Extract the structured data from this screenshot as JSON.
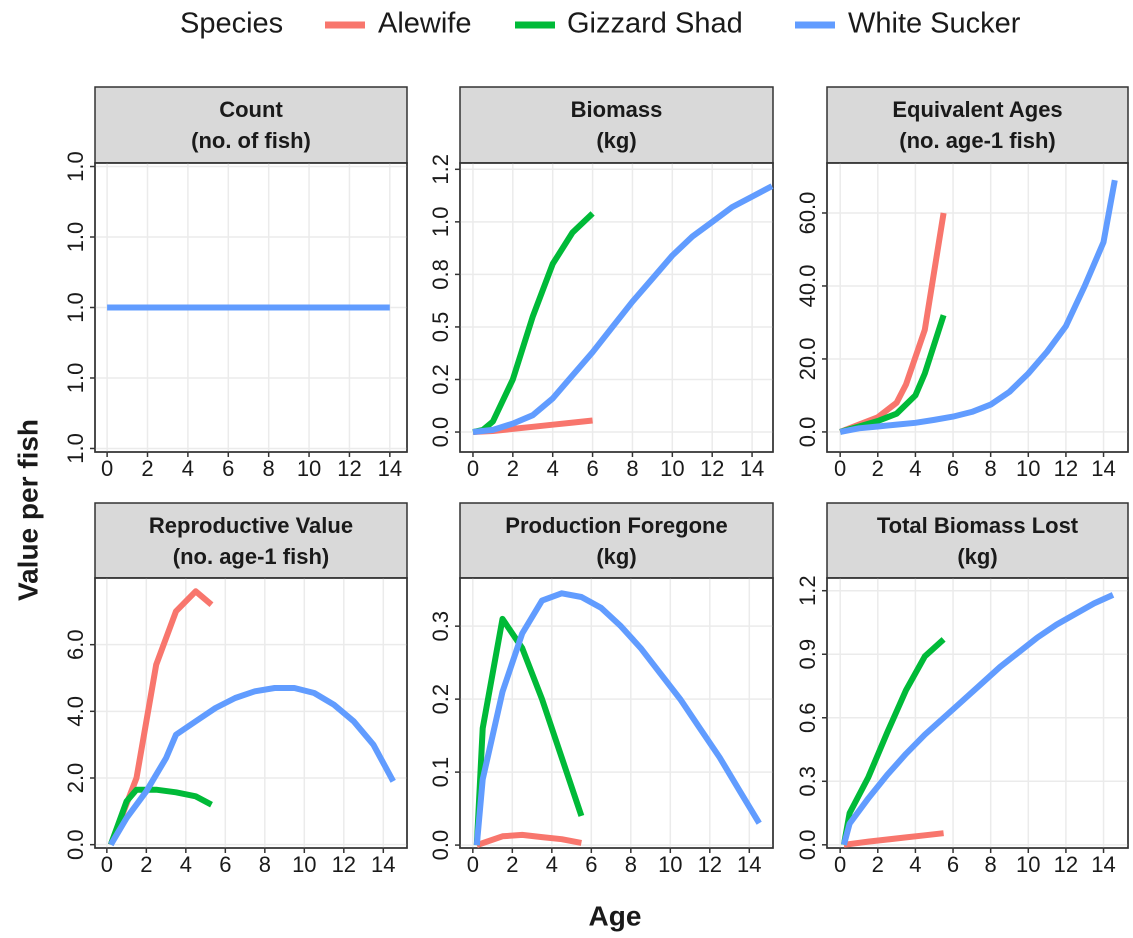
{
  "legend_title": "Species",
  "xlabel": "Age",
  "ylabel": "Value per fish",
  "chart_data": [
    {
      "type": "line",
      "title": "Count",
      "subtitle": "(no. of fish)",
      "grid": true,
      "xlim": [
        -0.6,
        14.85
      ],
      "xticks": [
        0,
        2,
        4,
        6,
        8,
        10,
        12,
        14
      ],
      "ylim": [
        0.959,
        1.041
      ],
      "yticks": [
        {
          "value": 0.96,
          "label": "1.0"
        },
        {
          "value": 0.98,
          "label": "1.0"
        },
        {
          "value": 1.0,
          "label": "1.0"
        },
        {
          "value": 1.02,
          "label": "1.0"
        },
        {
          "value": 1.04,
          "label": "1.0"
        }
      ],
      "series": [
        {
          "name": "White Sucker",
          "color": "#619CFF",
          "x": [
            0,
            14
          ],
          "values": [
            1,
            1
          ]
        }
      ]
    },
    {
      "type": "line",
      "title": "Biomass",
      "subtitle": "(kg)",
      "grid": true,
      "xlim": [
        -0.65,
        15.05
      ],
      "xticks": [
        0,
        2,
        4,
        6,
        8,
        10,
        12,
        14
      ],
      "ylim": [
        -0.095,
        1.28
      ],
      "yticks": [
        {
          "value": 0,
          "label": "0.0"
        },
        {
          "value": 0.25,
          "label": "0.2"
        },
        {
          "value": 0.5,
          "label": "0.5"
        },
        {
          "value": 0.75,
          "label": "0.8"
        },
        {
          "value": 1,
          "label": "1.0"
        },
        {
          "value": 1.25,
          "label": "1.2"
        }
      ],
      "series": [
        {
          "name": "Alewife",
          "color": "#F8766D",
          "x": [
            0,
            1,
            2,
            3,
            4,
            5,
            6
          ],
          "values": [
            0,
            0.005,
            0.015,
            0.025,
            0.035,
            0.045,
            0.055
          ]
        },
        {
          "name": "Gizzard Shad",
          "color": "#00BA38",
          "x": [
            0,
            0.5,
            1,
            2,
            3,
            4,
            5,
            6
          ],
          "values": [
            0,
            0.01,
            0.05,
            0.25,
            0.55,
            0.8,
            0.95,
            1.04
          ]
        },
        {
          "name": "White Sucker",
          "color": "#619CFF",
          "x": [
            0,
            1,
            2,
            3,
            4,
            5,
            6,
            7,
            8,
            9,
            10,
            11,
            12,
            13,
            14,
            15
          ],
          "values": [
            0,
            0.01,
            0.04,
            0.08,
            0.16,
            0.27,
            0.38,
            0.5,
            0.62,
            0.73,
            0.84,
            0.93,
            1.0,
            1.07,
            1.12,
            1.17
          ]
        }
      ]
    },
    {
      "type": "line",
      "title": "Equivalent Ages",
      "subtitle": "(no. age-1 fish)",
      "grid": true,
      "xlim": [
        -0.7,
        15.3
      ],
      "xticks": [
        0,
        2,
        4,
        6,
        8,
        10,
        12,
        14
      ],
      "ylim": [
        -5.5,
        73.7
      ],
      "yticks": [
        {
          "value": 0,
          "label": "0.0"
        },
        {
          "value": 20,
          "label": "20.0"
        },
        {
          "value": 40,
          "label": "40.0"
        },
        {
          "value": 60,
          "label": "60.0"
        }
      ],
      "series": [
        {
          "name": "Alewife",
          "color": "#F8766D",
          "x": [
            0,
            1,
            2,
            3,
            3.5,
            4.5,
            5.5
          ],
          "values": [
            0,
            2,
            4,
            8,
            13,
            28,
            60
          ]
        },
        {
          "name": "Gizzard Shad",
          "color": "#00BA38",
          "x": [
            0,
            1,
            2,
            3,
            4,
            4.5,
            5.5
          ],
          "values": [
            0,
            1.5,
            3,
            5,
            10,
            16,
            32
          ]
        },
        {
          "name": "White Sucker",
          "color": "#619CFF",
          "x": [
            0,
            1,
            2,
            3,
            4,
            5,
            6,
            7,
            8,
            9,
            10,
            11,
            12,
            13,
            14,
            14.6
          ],
          "values": [
            0,
            1,
            1.5,
            2,
            2.5,
            3.3,
            4.2,
            5.5,
            7.5,
            11,
            16,
            22,
            29,
            40,
            52,
            69
          ]
        }
      ]
    },
    {
      "type": "line",
      "title": "Reproductive Value",
      "subtitle": "(no. age-1 fish)",
      "grid": true,
      "xlim": [
        -0.6,
        15.2
      ],
      "xticks": [
        0,
        2,
        4,
        6,
        8,
        10,
        12,
        14
      ],
      "ylim": [
        -0.1,
        8.0
      ],
      "yticks": [
        {
          "value": 0,
          "label": "0.0"
        },
        {
          "value": 2,
          "label": "2.0"
        },
        {
          "value": 4,
          "label": "4.0"
        },
        {
          "value": 6,
          "label": "6.0"
        }
      ],
      "series": [
        {
          "name": "Alewife",
          "color": "#F8766D",
          "x": [
            0.2,
            1.5,
            2.5,
            3.5,
            4.5,
            5.3
          ],
          "values": [
            0,
            2,
            5.4,
            7.0,
            7.6,
            7.2
          ]
        },
        {
          "name": "Gizzard Shad",
          "color": "#00BA38",
          "x": [
            0.2,
            1,
            1.5,
            2.5,
            3.5,
            4.5,
            5.3
          ],
          "values": [
            0,
            1.3,
            1.65,
            1.65,
            1.57,
            1.45,
            1.2
          ]
        },
        {
          "name": "White Sucker",
          "color": "#619CFF",
          "x": [
            0.2,
            1,
            2,
            3,
            3.5,
            4.5,
            5.5,
            6.5,
            7.5,
            8.5,
            9.5,
            10.5,
            11.5,
            12.5,
            13.5,
            14.5
          ],
          "values": [
            0,
            0.8,
            1.6,
            2.6,
            3.3,
            3.7,
            4.1,
            4.4,
            4.6,
            4.7,
            4.7,
            4.55,
            4.2,
            3.7,
            3.0,
            1.9
          ]
        }
      ]
    },
    {
      "type": "line",
      "title": "Production Foregone",
      "subtitle": "(kg)",
      "grid": true,
      "xlim": [
        -0.65,
        15.2
      ],
      "xticks": [
        0,
        2,
        4,
        6,
        8,
        10,
        12,
        14
      ],
      "ylim": [
        -0.004,
        0.366
      ],
      "yticks": [
        {
          "value": 0,
          "label": "0.0"
        },
        0.1,
        0.2,
        0.3
      ],
      "series": [
        {
          "name": "Alewife",
          "color": "#F8766D",
          "x": [
            0.2,
            1.5,
            2.5,
            3.5,
            4.5,
            5.5
          ],
          "values": [
            0,
            0.012,
            0.014,
            0.011,
            0.008,
            0.003
          ]
        },
        {
          "name": "Gizzard Shad",
          "color": "#00BA38",
          "x": [
            0.2,
            0.5,
            1.5,
            2.5,
            3.5,
            4.5,
            5.5
          ],
          "values": [
            0,
            0.16,
            0.31,
            0.27,
            0.2,
            0.12,
            0.04
          ]
        },
        {
          "name": "White Sucker",
          "color": "#619CFF",
          "x": [
            0.2,
            0.5,
            1.5,
            2.5,
            3.5,
            4.5,
            5.5,
            6.5,
            7.5,
            8.5,
            9.5,
            10.5,
            11.5,
            12.5,
            13.5,
            14.5
          ],
          "values": [
            0,
            0.09,
            0.21,
            0.29,
            0.335,
            0.345,
            0.34,
            0.325,
            0.3,
            0.27,
            0.235,
            0.2,
            0.16,
            0.12,
            0.075,
            0.03
          ]
        }
      ]
    },
    {
      "type": "line",
      "title": "Total Biomass Lost",
      "subtitle": "(kg)",
      "grid": true,
      "xlim": [
        -0.7,
        15.3
      ],
      "xticks": [
        0,
        2,
        4,
        6,
        8,
        10,
        12,
        14
      ],
      "ylim": [
        -0.015,
        1.26
      ],
      "yticks": [
        {
          "value": 0,
          "label": "0.0"
        },
        0.3,
        0.6,
        0.9,
        {
          "value": 1.2,
          "label": "1.2"
        }
      ],
      "series": [
        {
          "name": "Alewife",
          "color": "#F8766D",
          "x": [
            0.2,
            1.5,
            2.5,
            3.5,
            4.5,
            5.5
          ],
          "values": [
            0,
            0.015,
            0.025,
            0.035,
            0.045,
            0.055
          ]
        },
        {
          "name": "Gizzard Shad",
          "color": "#00BA38",
          "x": [
            0.2,
            0.5,
            1.5,
            2.5,
            3.5,
            4.5,
            5.5
          ],
          "values": [
            0,
            0.15,
            0.32,
            0.53,
            0.73,
            0.89,
            0.97
          ]
        },
        {
          "name": "White Sucker",
          "color": "#619CFF",
          "x": [
            0.2,
            0.5,
            1.5,
            2.5,
            3.5,
            4.5,
            5.5,
            6.5,
            7.5,
            8.5,
            9.5,
            10.5,
            11.5,
            12.5,
            13.5,
            14.5
          ],
          "values": [
            0,
            0.1,
            0.22,
            0.33,
            0.43,
            0.52,
            0.6,
            0.68,
            0.76,
            0.84,
            0.91,
            0.98,
            1.04,
            1.09,
            1.14,
            1.18
          ]
        }
      ]
    }
  ]
}
